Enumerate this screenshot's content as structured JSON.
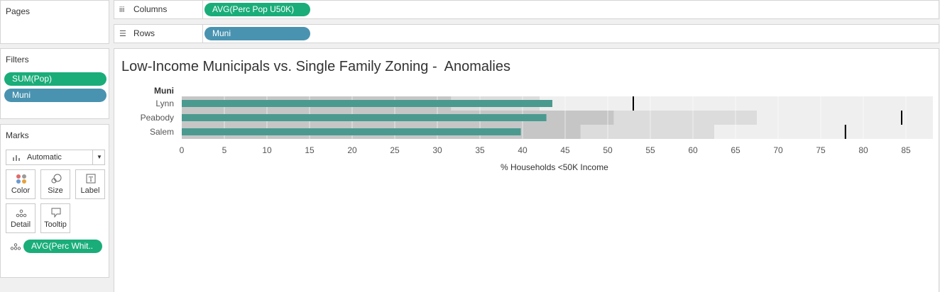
{
  "pages_panel": {
    "title": "Pages"
  },
  "filters_panel": {
    "title": "Filters",
    "pills": [
      "SUM(Pop)",
      "Muni"
    ]
  },
  "marks_panel": {
    "title": "Marks",
    "mark_type": "Automatic",
    "buttons": [
      "Color",
      "Size",
      "Label",
      "Detail",
      "Tooltip"
    ],
    "detail_pill": "AVG(Perc Whit.."
  },
  "shelves": {
    "columns_label": "Columns",
    "columns_pill": "AVG(Perc Pop U50K)",
    "rows_label": "Rows",
    "rows_pill": "Muni"
  },
  "viz": {
    "title": "Low-Income Municipals vs. Single Family Zoning -  Anomalies",
    "row_header": "Muni"
  },
  "chart_data": {
    "type": "bar",
    "categories": [
      "Lynn",
      "Peabody",
      "Salem"
    ],
    "values": [
      43.5,
      42.8,
      39.8
    ],
    "reference_lines": [
      53.0,
      84.5,
      77.9
    ],
    "bands": [
      {
        "dark_end": 31.6,
        "medium_end": 42.0,
        "light_end": 88.5
      },
      {
        "dark_end": 50.7,
        "medium_end": 67.5,
        "light_end": 88.5
      },
      {
        "dark_end": 46.8,
        "medium_end": 62.5,
        "light_end": 88.5
      }
    ],
    "xlabel": "% Households <50K Income",
    "ylabel": "Muni",
    "xlim": [
      0,
      88.5
    ],
    "xticks": [
      0,
      5,
      10,
      15,
      20,
      25,
      30,
      35,
      40,
      45,
      50,
      55,
      60,
      65,
      70,
      75,
      80,
      85
    ],
    "gridlines": true,
    "colors": {
      "bar": "#4a9a8f",
      "band_dark": "#c6c6c6",
      "band_medium": "#dcdcdc",
      "band_light": "#efefef",
      "reference_line": "#000000",
      "pill_green": "#1aad7a",
      "pill_blue": "#4993b0"
    }
  }
}
